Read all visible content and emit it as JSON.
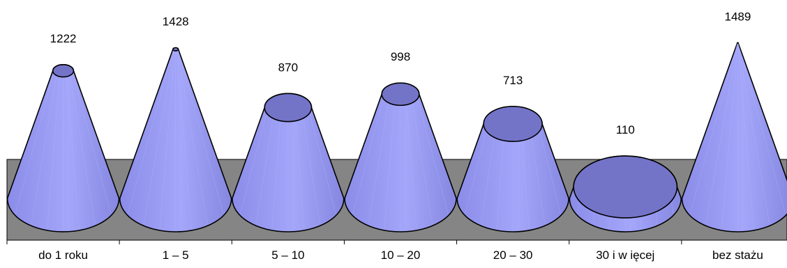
{
  "chart_data": {
    "type": "bar",
    "bar_shape": "cone",
    "categories": [
      "do 1 roku",
      "1 – 5",
      "5 – 10",
      "10 – 20",
      "20 – 30",
      "30 i w ięcej",
      "bez stażu"
    ],
    "values": [
      1222,
      1428,
      870,
      998,
      713,
      110,
      1489
    ],
    "data_labels": [
      "1222",
      "1428",
      "870",
      "998",
      "713",
      "110",
      "1489"
    ],
    "ylim": [
      0,
      1500
    ],
    "grid": false,
    "legend": "none",
    "colors": {
      "cone_fill": "#9a9cf2",
      "cone_top": "#7374c8",
      "floor": "#858585",
      "outline": "#000000"
    }
  }
}
